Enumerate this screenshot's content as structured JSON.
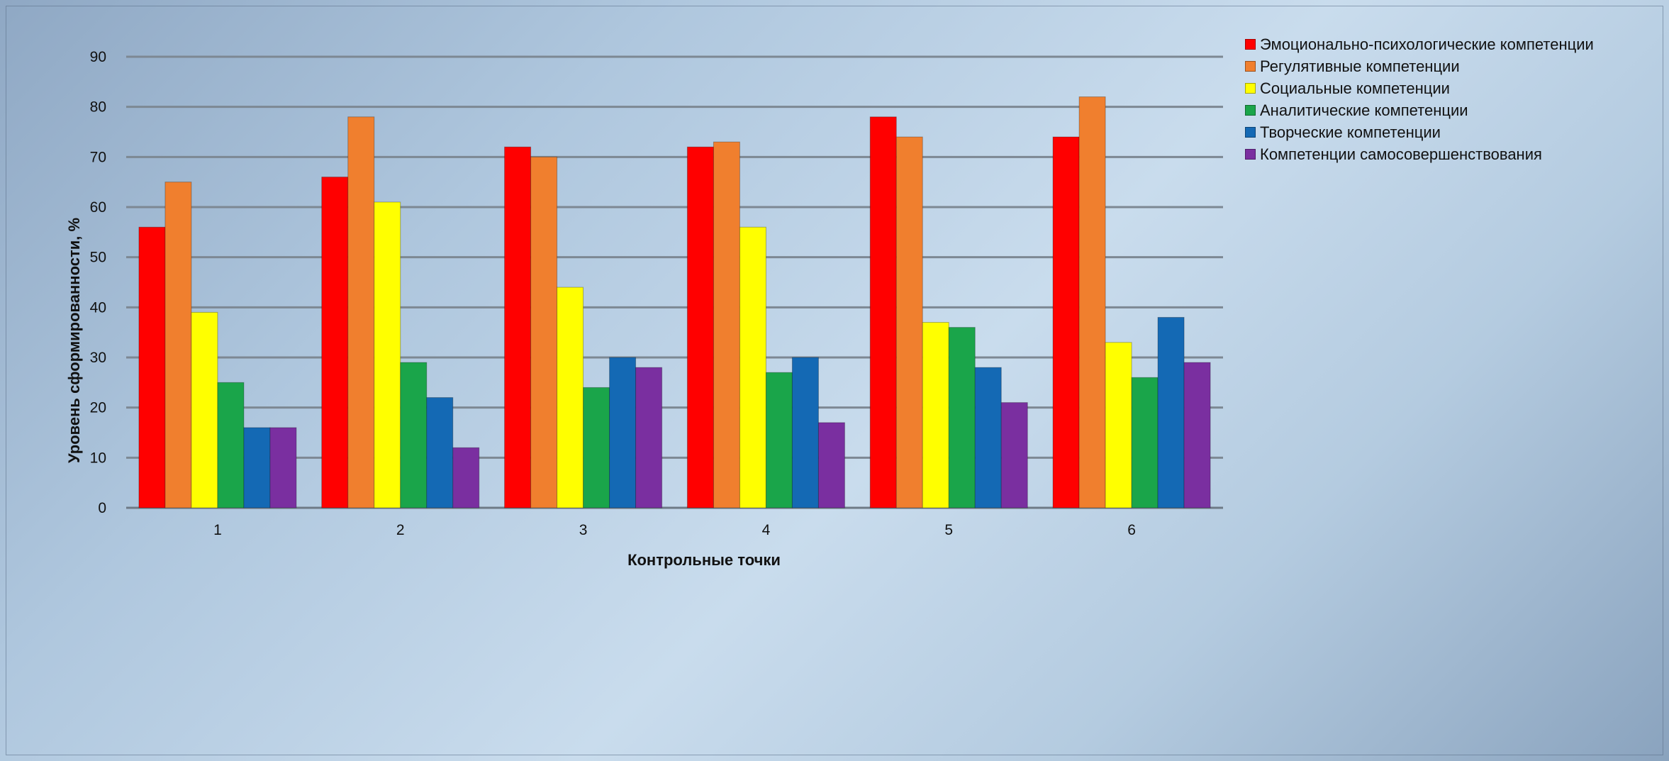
{
  "chart_data": {
    "type": "bar",
    "title": "",
    "xlabel": "Контрольные точки",
    "ylabel": "Уровень сформированности, %",
    "ylim": [
      0,
      90
    ],
    "yticks": [
      0,
      10,
      20,
      30,
      40,
      50,
      60,
      70,
      80,
      90
    ],
    "grid": true,
    "legend_position": "right",
    "categories": [
      "1",
      "2",
      "3",
      "4",
      "5",
      "6"
    ],
    "series": [
      {
        "name": "Эмоционально-психологические компетенции",
        "color": "#ff0000",
        "values": [
          56,
          66,
          72,
          72,
          78,
          74
        ]
      },
      {
        "name": "Регулятивные компетенции",
        "color": "#f07f2e",
        "values": [
          65,
          78,
          70,
          73,
          74,
          82
        ]
      },
      {
        "name": "Социальные компетенции",
        "color": "#ffff00",
        "values": [
          39,
          61,
          44,
          56,
          37,
          33
        ]
      },
      {
        "name": "Аналитические компетенции",
        "color": "#1aa54a",
        "values": [
          25,
          29,
          24,
          27,
          36,
          26
        ]
      },
      {
        "name": "Творческие компетенции",
        "color": "#1469b4",
        "values": [
          16,
          22,
          30,
          30,
          28,
          38
        ]
      },
      {
        "name": "Компетенции самосовершенствования",
        "color": "#7a2fa0",
        "values": [
          16,
          12,
          28,
          17,
          21,
          29
        ]
      }
    ]
  }
}
